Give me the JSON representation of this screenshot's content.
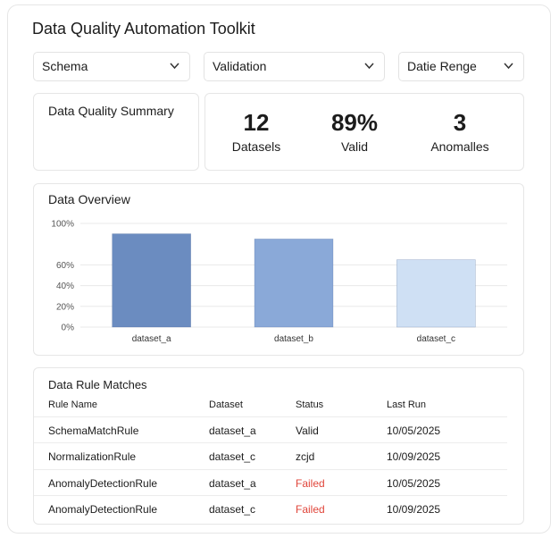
{
  "header": {
    "title": "Data Quality Automation Toolkit"
  },
  "filters": [
    "Schema",
    "Validation",
    "Datie Renge"
  ],
  "summary": {
    "title": "Data Quality Summary",
    "stats": [
      {
        "value": "12",
        "label": "Datasels"
      },
      {
        "value": "89%",
        "label": "Valid"
      },
      {
        "value": "3",
        "label": "Anomalles"
      }
    ]
  },
  "chart_data": {
    "type": "bar",
    "title": "Data Overview",
    "categories": [
      "dataset_a",
      "dataset_b",
      "dataset_c"
    ],
    "values": [
      90,
      85,
      65
    ],
    "colors": [
      "#6b8cc0",
      "#8aa9d8",
      "#cfe0f4"
    ],
    "ylim": [
      0,
      100
    ],
    "yticks": [
      {
        "value": 0,
        "label": "0%"
      },
      {
        "value": 20,
        "label": "20%"
      },
      {
        "value": 40,
        "label": "40%"
      },
      {
        "value": 60,
        "label": "60%"
      },
      {
        "value": 100,
        "label": "100%"
      }
    ],
    "grid": true
  },
  "table": {
    "title": "Data Rule Matches",
    "columns": [
      "Rule Name",
      "Dataset",
      "Status",
      "Last Run"
    ],
    "rows": [
      [
        "SchemaMatchRule",
        "dataset_a",
        "Valid",
        "10/05/2025"
      ],
      [
        "NormalizationRule",
        "dataset_c",
        "zcjd",
        "10/09/2025"
      ],
      [
        "AnomalyDetectionRule",
        "dataset_a",
        "Failed",
        "10/05/2025"
      ],
      [
        "AnomalyDetectionRule",
        "dataset_c",
        "Failed",
        "10/09/2025"
      ]
    ]
  }
}
